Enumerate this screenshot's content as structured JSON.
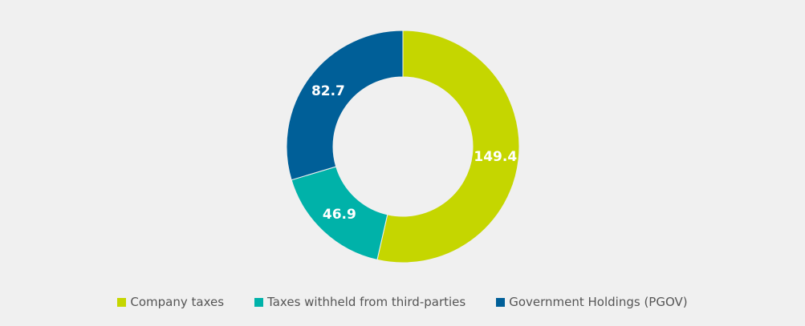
{
  "chart_data": {
    "type": "pie",
    "variant": "donut",
    "legend_position": "bottom",
    "categories": [
      "Company taxes",
      "Taxes withheld from third-parties",
      "Government Holdings (PGOV)"
    ],
    "values": [
      149.4,
      46.9,
      82.7
    ],
    "value_labels": [
      "149.4",
      "46.9",
      "82.7"
    ],
    "colors": [
      "#c5d600",
      "#00b2a9",
      "#005f98"
    ]
  }
}
